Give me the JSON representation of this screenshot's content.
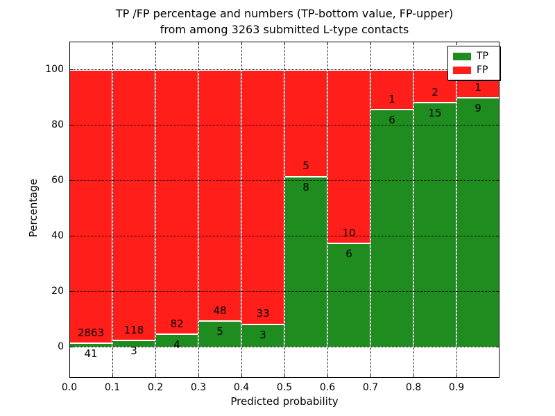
{
  "figure": {
    "title_lines": [
      "TP /FP percentage and numbers (TP-bottom value, FP-upper)",
      "from among 3263 submitted L-type contacts"
    ]
  },
  "chart_data": {
    "type": "bar",
    "stacked": true,
    "normalized_to": 100,
    "title": "TP /FP percentage and numbers (TP-bottom value, FP-upper) from among 3263 submitted L-type contacts",
    "xlabel": "Predicted probability",
    "ylabel": "Percentage",
    "total_submitted_contacts": 3263,
    "bin_width": 0.1,
    "categories": [
      "0.0",
      "0.1",
      "0.2",
      "0.3",
      "0.4",
      "0.5",
      "0.6",
      "0.7",
      "0.8",
      "0.9"
    ],
    "series": [
      {
        "name": "TP",
        "color": "#1e8c1e",
        "values": [
          41,
          3,
          4,
          5,
          3,
          8,
          6,
          6,
          15,
          9
        ]
      },
      {
        "name": "FP",
        "color": "#ff1e19",
        "values": [
          2863,
          118,
          82,
          48,
          33,
          5,
          10,
          1,
          2,
          1
        ]
      }
    ],
    "tp_percent": [
      1.41,
      2.48,
      4.65,
      9.43,
      8.33,
      61.54,
      37.5,
      85.71,
      88.24,
      90.0
    ],
    "x_ticks": [
      "0.0",
      "0.1",
      "0.2",
      "0.3",
      "0.4",
      "0.5",
      "0.6",
      "0.7",
      "0.8",
      "0.9"
    ],
    "y_ticks": [
      0,
      20,
      40,
      60,
      80,
      100
    ],
    "xlim": [
      0.0,
      1.0
    ],
    "ylim": [
      -11.25,
      110
    ],
    "grid": "dotted",
    "legend": {
      "position": "upper right",
      "entries": [
        {
          "label": "TP",
          "color": "#1e8c1e"
        },
        {
          "label": "FP",
          "color": "#ff1e19"
        }
      ]
    }
  }
}
